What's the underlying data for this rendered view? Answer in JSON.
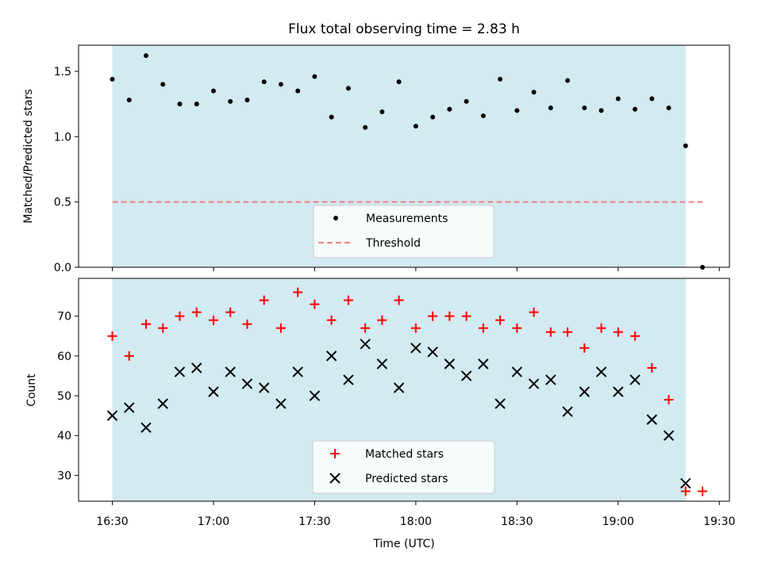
{
  "chart_data": [
    {
      "type": "scatter",
      "title": "Flux total observing time = 2.83 h",
      "xlabel": "",
      "ylabel": "Matched/Predicted stars",
      "ylim": [
        0.0,
        1.7
      ],
      "yticks": [
        0.0,
        0.5,
        1.0,
        1.5
      ],
      "ytick_labels": [
        "0.0",
        "0.5",
        "1.0",
        "1.5"
      ],
      "grid": false,
      "legend_position": "bottom-center",
      "shaded_window": [
        "16:30",
        "19:20"
      ],
      "shaded_color": "#add8e6",
      "series": [
        {
          "name": "Measurements",
          "color": "#000000",
          "marker": "dot",
          "x": [
            "16:30",
            "16:35",
            "16:40",
            "16:45",
            "16:50",
            "16:55",
            "17:00",
            "17:05",
            "17:10",
            "17:15",
            "17:20",
            "17:25",
            "17:30",
            "17:35",
            "17:40",
            "17:45",
            "17:50",
            "17:55",
            "18:00",
            "18:05",
            "18:10",
            "18:15",
            "18:20",
            "18:25",
            "18:30",
            "18:35",
            "18:40",
            "18:45",
            "18:50",
            "18:55",
            "19:00",
            "19:05",
            "19:10",
            "19:15",
            "19:20",
            "19:25"
          ],
          "y": [
            1.44,
            1.28,
            1.62,
            1.4,
            1.25,
            1.25,
            1.35,
            1.27,
            1.28,
            1.42,
            1.4,
            1.35,
            1.46,
            1.15,
            1.37,
            1.07,
            1.19,
            1.42,
            1.08,
            1.15,
            1.21,
            1.27,
            1.16,
            1.44,
            1.2,
            1.34,
            1.22,
            1.43,
            1.22,
            1.2,
            1.29,
            1.21,
            1.29,
            1.22,
            0.93,
            0.0
          ]
        },
        {
          "name": "Threshold",
          "color": "#f08080",
          "line_style": "dashed",
          "x": [
            "16:30",
            "19:25"
          ],
          "y": [
            0.5,
            0.5
          ]
        }
      ]
    },
    {
      "type": "scatter",
      "title": "",
      "xlabel": "Time (UTC)",
      "ylabel": "Count",
      "ylim": [
        23.5,
        79.5
      ],
      "yticks": [
        30,
        40,
        50,
        60,
        70
      ],
      "ytick_labels": [
        "30",
        "40",
        "50",
        "60",
        "70"
      ],
      "xticks": [
        "16:30",
        "17:00",
        "17:30",
        "18:00",
        "18:30",
        "19:00",
        "19:30"
      ],
      "xlim": [
        "16:20",
        "19:33"
      ],
      "grid": false,
      "legend_position": "bottom-center",
      "shaded_window": [
        "16:30",
        "19:20"
      ],
      "shaded_color": "#add8e6",
      "series": [
        {
          "name": "Matched stars",
          "color": "#ff0000",
          "marker": "plus",
          "x": [
            "16:30",
            "16:35",
            "16:40",
            "16:45",
            "16:50",
            "16:55",
            "17:00",
            "17:05",
            "17:10",
            "17:15",
            "17:20",
            "17:25",
            "17:30",
            "17:35",
            "17:40",
            "17:45",
            "17:50",
            "17:55",
            "18:00",
            "18:05",
            "18:10",
            "18:15",
            "18:20",
            "18:25",
            "18:30",
            "18:35",
            "18:40",
            "18:45",
            "18:50",
            "18:55",
            "19:00",
            "19:05",
            "19:10",
            "19:15",
            "19:20",
            "19:25"
          ],
          "y": [
            65,
            60,
            68,
            67,
            70,
            71,
            69,
            71,
            68,
            74,
            67,
            76,
            73,
            69,
            74,
            67,
            69,
            74,
            67,
            70,
            70,
            70,
            67,
            69,
            67,
            71,
            66,
            66,
            62,
            67,
            66,
            65,
            57,
            49,
            26,
            26
          ]
        },
        {
          "name": "Predicted stars",
          "color": "#000000",
          "marker": "x",
          "x": [
            "16:30",
            "16:35",
            "16:40",
            "16:45",
            "16:50",
            "16:55",
            "17:00",
            "17:05",
            "17:10",
            "17:15",
            "17:20",
            "17:25",
            "17:30",
            "17:35",
            "17:40",
            "17:45",
            "17:50",
            "17:55",
            "18:00",
            "18:05",
            "18:10",
            "18:15",
            "18:20",
            "18:25",
            "18:30",
            "18:35",
            "18:40",
            "18:45",
            "18:50",
            "18:55",
            "19:00",
            "19:05",
            "19:10",
            "19:15",
            "19:20"
          ],
          "y": [
            45,
            47,
            42,
            48,
            56,
            57,
            51,
            56,
            53,
            52,
            48,
            56,
            50,
            60,
            54,
            63,
            58,
            52,
            62,
            61,
            58,
            55,
            58,
            48,
            56,
            53,
            54,
            46,
            51,
            56,
            51,
            54,
            44,
            40,
            28
          ]
        }
      ]
    }
  ]
}
